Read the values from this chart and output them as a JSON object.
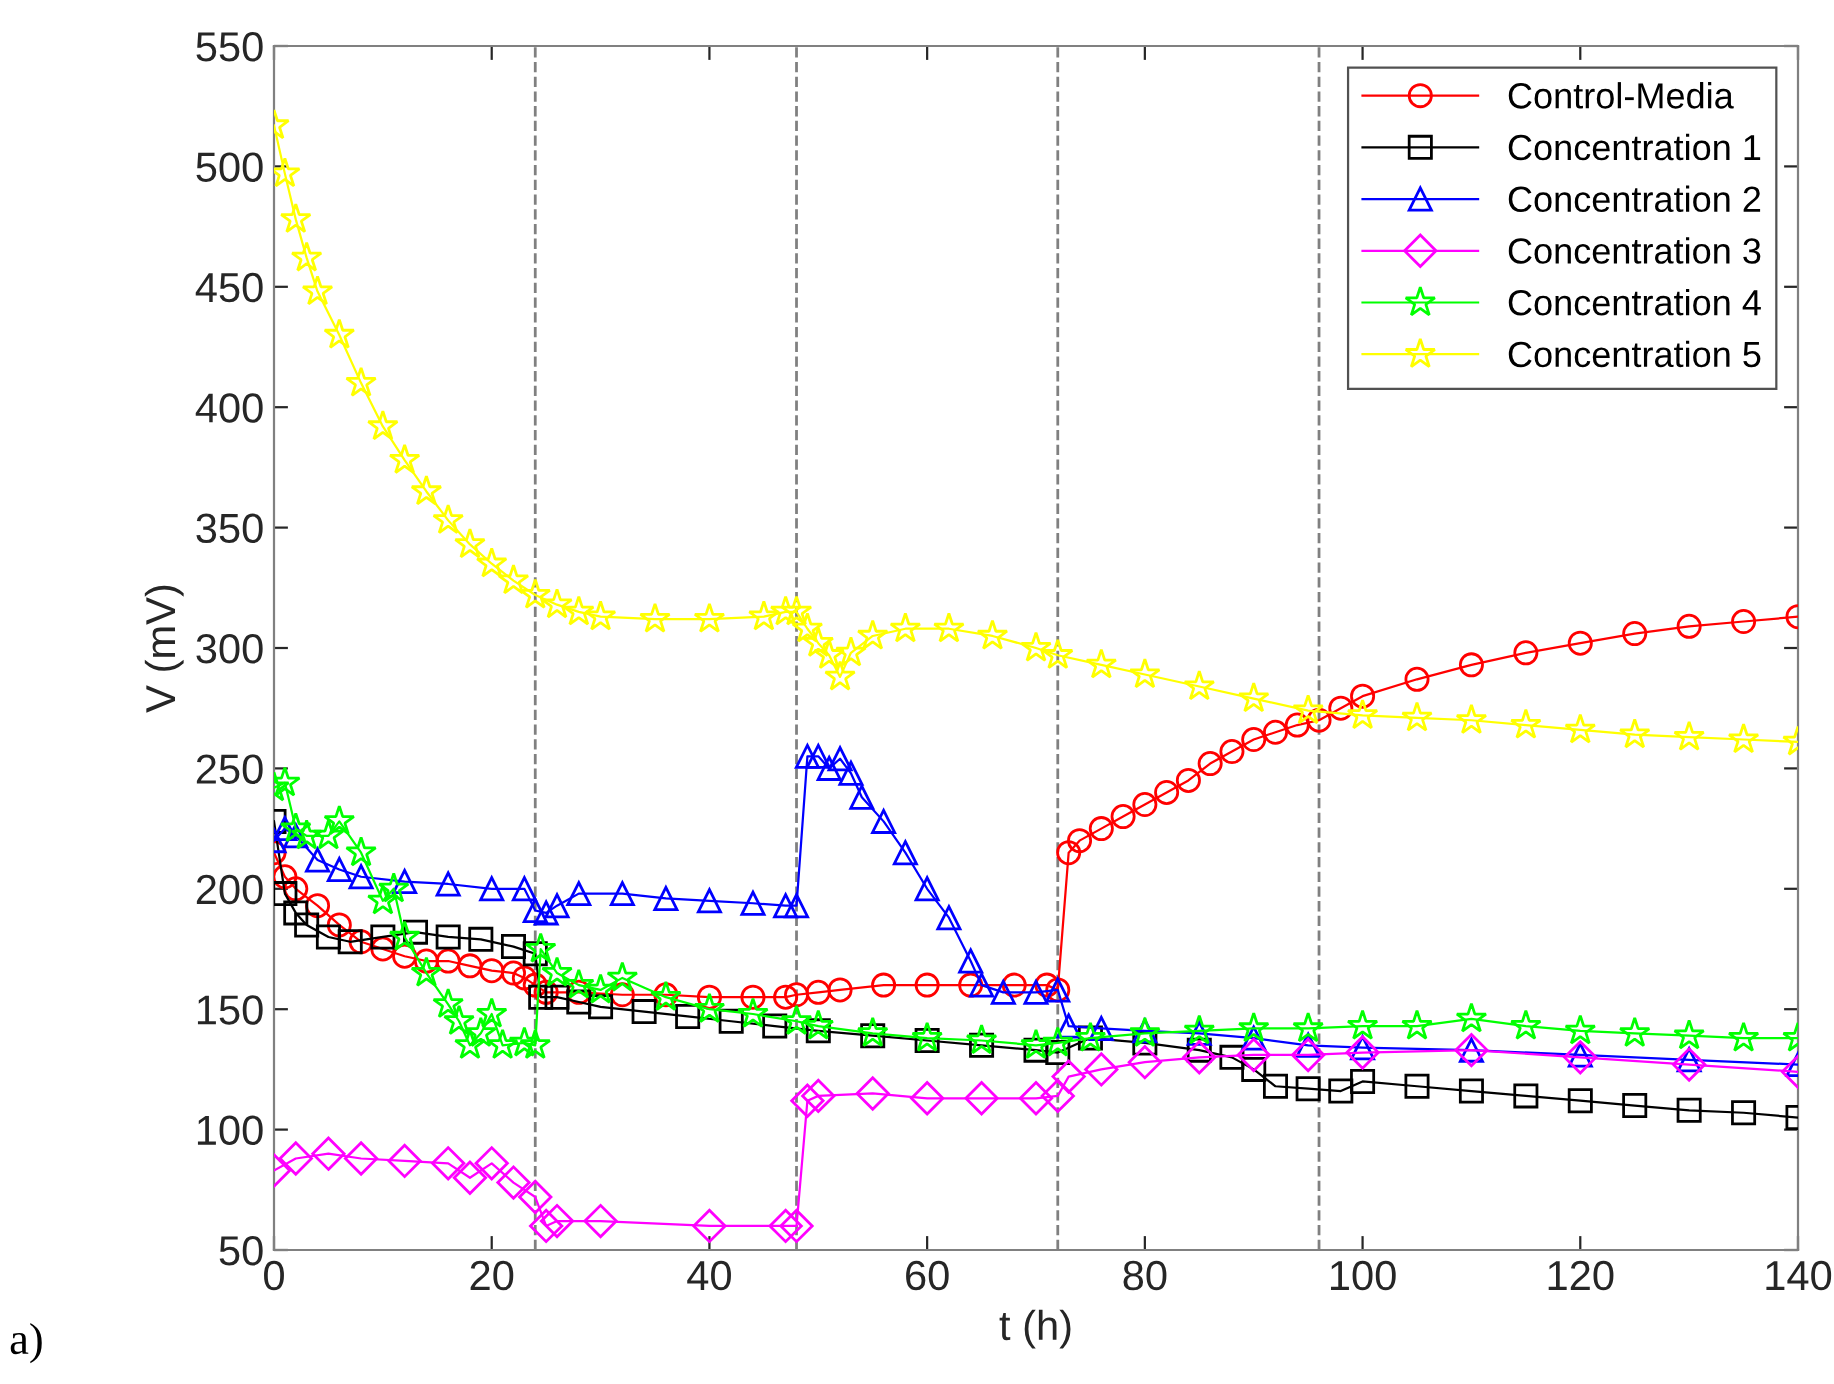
{
  "chart_data": {
    "type": "line",
    "xlabel": "t (h)",
    "ylabel": "V (mV)",
    "xlim": [
      0,
      140
    ],
    "ylim": [
      50,
      550
    ],
    "xticks": [
      0,
      20,
      40,
      60,
      80,
      100,
      120,
      140
    ],
    "yticks": [
      50,
      100,
      150,
      200,
      250,
      300,
      350,
      400,
      450,
      500,
      550
    ],
    "grid": false,
    "legend": "top right",
    "line_style": "solid",
    "annotations": [
      "a)"
    ],
    "ref_lines": [
      {
        "axis": "x",
        "value": 24,
        "label": null,
        "color": "#808080",
        "line_style": "dashed"
      },
      {
        "axis": "x",
        "value": 48,
        "label": null,
        "color": "#808080",
        "line_style": "dashed"
      },
      {
        "axis": "x",
        "value": 72,
        "label": null,
        "color": "#808080",
        "line_style": "dashed"
      },
      {
        "axis": "x",
        "value": 96,
        "label": null,
        "color": "#808080",
        "line_style": "dashed"
      }
    ],
    "series": [
      {
        "name": "Control-Media",
        "color": "#ff0000",
        "marker": "circle",
        "x": [
          0,
          1,
          2,
          4,
          6,
          8,
          10,
          12,
          14,
          16,
          18,
          20,
          22,
          23,
          24,
          25,
          28,
          32,
          36,
          40,
          44,
          47,
          48,
          50,
          52,
          56,
          60,
          64,
          68,
          71,
          72,
          73,
          74,
          76,
          78,
          80,
          82,
          84,
          86,
          88,
          90,
          92,
          94,
          96,
          98,
          100,
          105,
          110,
          115,
          120,
          125,
          130,
          135,
          140
        ],
        "values": [
          215,
          205,
          200,
          193,
          185,
          178,
          175,
          172,
          170,
          170,
          168,
          166,
          165,
          163,
          160,
          157,
          157,
          156,
          156,
          155,
          155,
          155,
          156,
          157,
          158,
          160,
          160,
          160,
          160,
          160,
          158,
          215,
          220,
          225,
          230,
          235,
          240,
          245,
          252,
          257,
          262,
          265,
          268,
          270,
          275,
          280,
          287,
          293,
          298,
          302,
          306,
          309,
          311,
          313
        ]
      },
      {
        "name": "Concentration 1",
        "color": "#000000",
        "marker": "square",
        "x": [
          0,
          1,
          2,
          3,
          5,
          7,
          10,
          13,
          16,
          19,
          22,
          24,
          24.5,
          26,
          28,
          30,
          34,
          38,
          42,
          46,
          50,
          55,
          60,
          65,
          70,
          72,
          75,
          80,
          85,
          88,
          90,
          92,
          95,
          98,
          100,
          105,
          110,
          115,
          120,
          125,
          130,
          135,
          140
        ],
        "values": [
          228,
          198,
          190,
          185,
          180,
          178,
          180,
          182,
          180,
          179,
          176,
          173,
          155,
          155,
          153,
          151,
          149,
          147,
          145,
          143,
          141,
          139,
          137,
          135,
          133,
          132,
          138,
          136,
          133,
          130,
          125,
          118,
          117,
          116,
          120,
          118,
          116,
          114,
          112,
          110,
          108,
          107,
          105
        ]
      },
      {
        "name": "Concentration 2",
        "color": "#0000ff",
        "marker": "triangle",
        "x": [
          0,
          1,
          2,
          4,
          6,
          8,
          12,
          16,
          20,
          23,
          24,
          25,
          26,
          28,
          32,
          36,
          40,
          44,
          47,
          48,
          49,
          50,
          51,
          52,
          53,
          54,
          56,
          58,
          60,
          62,
          64,
          65,
          67,
          70,
          72,
          73,
          76,
          80,
          85,
          90,
          95,
          100,
          110,
          120,
          130,
          140
        ],
        "values": [
          220,
          225,
          222,
          212,
          208,
          205,
          203,
          202,
          200,
          200,
          191,
          190,
          193,
          198,
          198,
          196,
          195,
          194,
          193,
          193,
          255,
          255,
          250,
          254,
          248,
          238,
          228,
          215,
          200,
          188,
          170,
          160,
          157,
          157,
          158,
          143,
          142,
          141,
          140,
          138,
          135,
          134,
          133,
          131,
          129,
          127
        ]
      },
      {
        "name": "Concentration 3",
        "color": "#ff00ff",
        "marker": "diamond",
        "x": [
          0,
          2,
          5,
          8,
          12,
          16,
          18,
          20,
          22,
          24,
          25,
          26,
          30,
          40,
          47,
          48,
          49,
          50,
          55,
          60,
          65,
          70,
          72,
          73,
          76,
          80,
          85,
          90,
          95,
          100,
          110,
          120,
          130,
          140
        ],
        "values": [
          83,
          88,
          90,
          88,
          87,
          86,
          80,
          86,
          78,
          72,
          60,
          62,
          62,
          60,
          60,
          60,
          112,
          114,
          115,
          113,
          113,
          113,
          114,
          122,
          125,
          128,
          130,
          131,
          131,
          132,
          133,
          130,
          127,
          124
        ]
      },
      {
        "name": "Concentration 4",
        "color": "#00ff00",
        "marker": "star",
        "x": [
          0,
          1,
          2,
          3,
          5,
          6,
          8,
          10,
          11,
          12,
          14,
          16,
          17,
          18,
          19,
          20,
          21,
          23,
          24,
          24.5,
          26,
          28,
          30,
          32,
          36,
          40,
          44,
          48,
          50,
          55,
          60,
          65,
          70,
          72,
          75,
          80,
          85,
          90,
          95,
          100,
          105,
          110,
          115,
          120,
          125,
          130,
          135,
          140
        ],
        "values": [
          242,
          244,
          225,
          222,
          222,
          228,
          215,
          195,
          200,
          180,
          165,
          152,
          145,
          135,
          140,
          148,
          135,
          136,
          135,
          175,
          165,
          160,
          158,
          163,
          155,
          150,
          148,
          145,
          143,
          140,
          138,
          137,
          135,
          136,
          138,
          140,
          141,
          142,
          142,
          143,
          143,
          146,
          143,
          141,
          140,
          139,
          138,
          138
        ]
      },
      {
        "name": "Concentration 5",
        "color": "#ffff00",
        "marker": "star",
        "x": [
          0,
          1,
          2,
          3,
          4,
          6,
          8,
          10,
          12,
          14,
          16,
          18,
          20,
          22,
          24,
          26,
          28,
          30,
          35,
          40,
          45,
          47,
          48,
          49,
          50,
          51,
          52,
          53,
          55,
          58,
          62,
          66,
          70,
          72,
          76,
          80,
          85,
          90,
          95,
          100,
          105,
          110,
          115,
          120,
          125,
          130,
          135,
          140
        ],
        "values": [
          517,
          497,
          478,
          462,
          448,
          430,
          410,
          392,
          378,
          365,
          353,
          343,
          335,
          328,
          322,
          318,
          315,
          313,
          312,
          312,
          313,
          315,
          315,
          308,
          302,
          297,
          288,
          298,
          305,
          308,
          308,
          305,
          300,
          297,
          293,
          289,
          284,
          279,
          274,
          272,
          271,
          270,
          268,
          266,
          264,
          263,
          262,
          261
        ]
      }
    ]
  }
}
